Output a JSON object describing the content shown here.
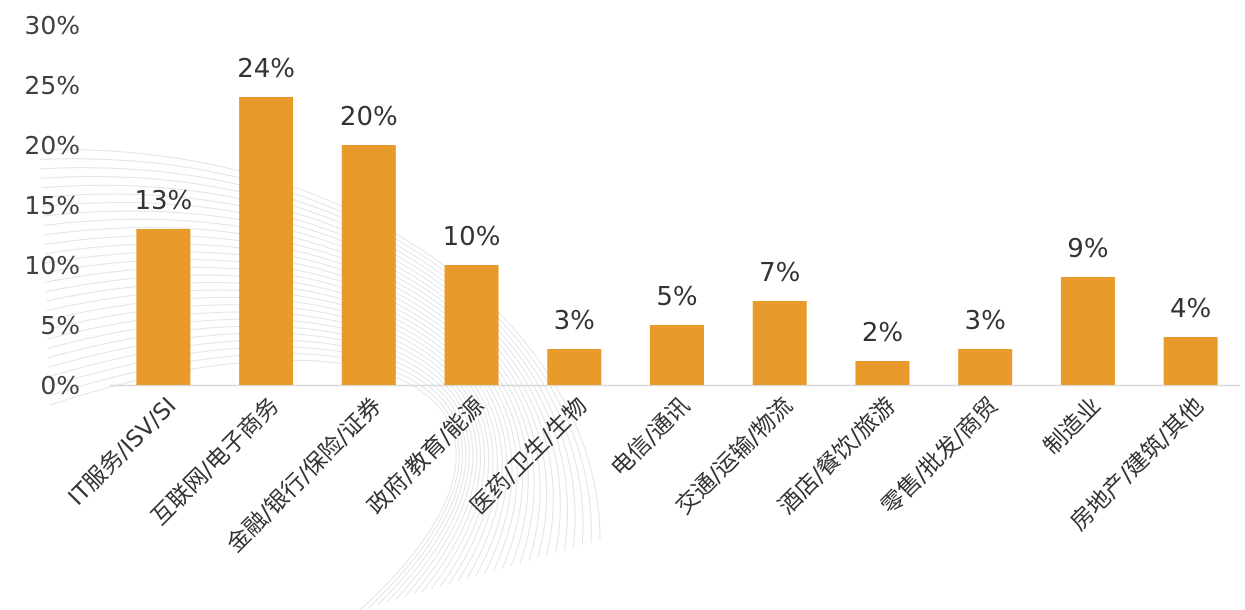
{
  "chart_data": {
    "type": "bar",
    "title": "",
    "xlabel": "",
    "ylabel": "",
    "categories": [
      "IT服务/ISV/SI",
      "互联网/电子商务",
      "金融/银行/保险/证券",
      "政府/教育/能源",
      "医药/卫生/生物",
      "电信/通讯",
      "交通/运输/物流",
      "酒店/餐饮/旅游",
      "零售/批发/商贸",
      "制造业",
      "房地产/建筑/其他"
    ],
    "values": [
      13,
      24,
      20,
      10,
      3,
      5,
      7,
      2,
      3,
      9,
      4
    ],
    "data_labels": [
      "13%",
      "24%",
      "20%",
      "10%",
      "3%",
      "5%",
      "7%",
      "2%",
      "3%",
      "9%",
      "4%"
    ],
    "ylim": [
      0,
      30
    ],
    "y_ticks": [
      0,
      5,
      10,
      15,
      20,
      25,
      30
    ],
    "y_tick_labels": [
      "0%",
      "5%",
      "10%",
      "15%",
      "20%",
      "25%",
      "30%"
    ],
    "grid": false,
    "legend": "none",
    "bar_color": "#e89b2a",
    "axis_color": "#d9d9d9"
  }
}
